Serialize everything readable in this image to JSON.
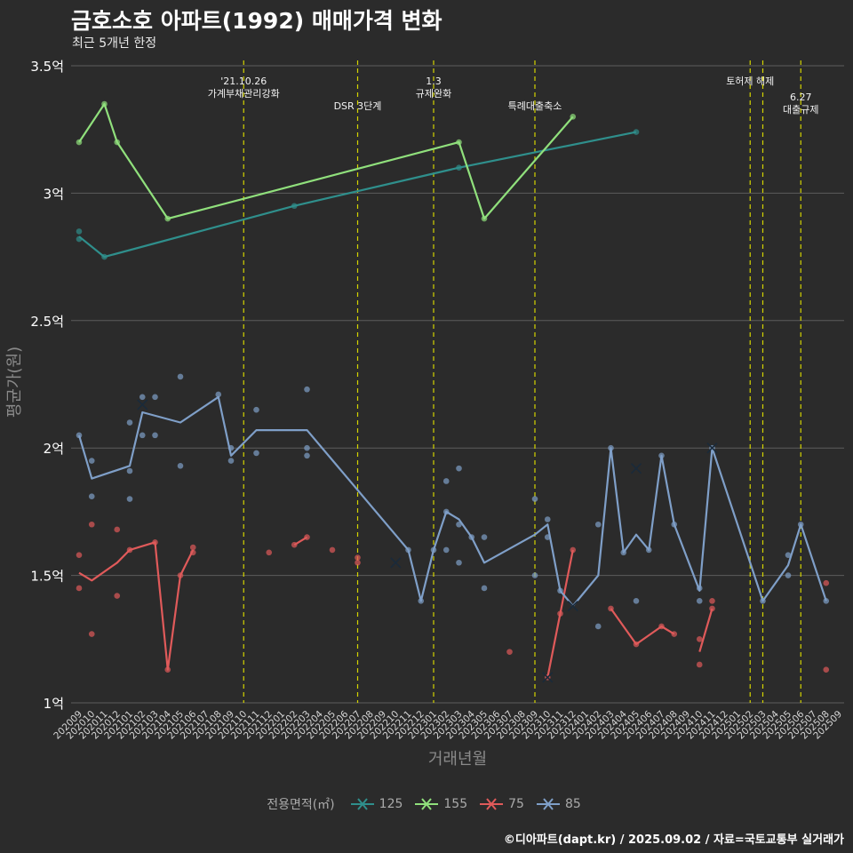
{
  "title": "금호소호 아파트(1992) 매매가격 변화",
  "subtitle": "최근 5개년 한정",
  "caption": "©디아파트(dapt.kr) / 2025.09.02 / 자료=국토교통부 실거래가",
  "legend": {
    "title": "전용면적(㎡)",
    "items": [
      {
        "label": "125",
        "color": "#2f8f8c"
      },
      {
        "label": "155",
        "color": "#90e07c"
      },
      {
        "label": "75",
        "color": "#e05a5a"
      },
      {
        "label": "85",
        "color": "#7f9fc8"
      }
    ]
  },
  "chart_data": {
    "type": "line",
    "xlabel": "거래년월",
    "ylabel": "평균가(원)",
    "ylim": [
      1.0,
      3.5
    ],
    "yticks": [
      {
        "value": 1.0,
        "label": "1억"
      },
      {
        "value": 1.5,
        "label": "1.5억"
      },
      {
        "value": 2.0,
        "label": "2억"
      },
      {
        "value": 2.5,
        "label": "2.5억"
      },
      {
        "value": 3.0,
        "label": "3억"
      },
      {
        "value": 3.5,
        "label": "3.5억"
      }
    ],
    "grid": true,
    "legend_position": "bottom",
    "categories": [
      "202009",
      "202010",
      "202011",
      "202012",
      "202101",
      "202102",
      "202103",
      "202104",
      "202105",
      "202106",
      "202107",
      "202108",
      "202109",
      "202110",
      "202111",
      "202112",
      "202201",
      "202202",
      "202203",
      "202204",
      "202205",
      "202206",
      "202207",
      "202208",
      "202209",
      "202210",
      "202211",
      "202212",
      "202301",
      "202302",
      "202303",
      "202304",
      "202305",
      "202306",
      "202307",
      "202308",
      "202309",
      "202310",
      "202311",
      "202312",
      "202401",
      "202402",
      "202403",
      "202404",
      "202405",
      "202406",
      "202407",
      "202408",
      "202409",
      "202410",
      "202411",
      "202412",
      "202501",
      "202502",
      "202503",
      "202504",
      "202505",
      "202506",
      "202507",
      "202508",
      "202509"
    ],
    "annotations": [
      {
        "x": 13,
        "lines": [
          "'21.10.26",
          "가계부채관리강화"
        ],
        "row": 1
      },
      {
        "x": 22,
        "lines": [
          "DSR 3단계"
        ],
        "row": 2
      },
      {
        "x": 28,
        "lines": [
          "1.3",
          "규제완화"
        ],
        "row": 1
      },
      {
        "x": 36,
        "lines": [
          "특례대출축소"
        ],
        "row": 2
      },
      {
        "x": 53,
        "lines": [
          "토허제 해제"
        ],
        "row": 1
      },
      {
        "x": 54,
        "lines": [],
        "row": 1
      },
      {
        "x": 57,
        "lines": [
          "6.27",
          "대출규제"
        ],
        "row": 3
      }
    ],
    "series": [
      {
        "name": "125",
        "color": "#2f8f8c",
        "line": [
          [
            0,
            2.83
          ],
          [
            2,
            2.75
          ],
          [
            17,
            2.95
          ],
          [
            30,
            3.1
          ],
          [
            44,
            3.24
          ]
        ],
        "points": [
          [
            0,
            2.85
          ],
          [
            0,
            2.82
          ],
          [
            2,
            2.75
          ],
          [
            17,
            2.95
          ],
          [
            30,
            3.1
          ],
          [
            44,
            3.24
          ]
        ],
        "crosses": []
      },
      {
        "name": "155",
        "color": "#90e07c",
        "line": [
          [
            0,
            3.2
          ],
          [
            2,
            3.35
          ],
          [
            3,
            3.2
          ],
          [
            7,
            2.9
          ],
          [
            30,
            3.2
          ],
          [
            32,
            2.9
          ],
          [
            39,
            3.3
          ]
        ],
        "points": [
          [
            0,
            3.2
          ],
          [
            2,
            3.35
          ],
          [
            3,
            3.2
          ],
          [
            7,
            2.9
          ],
          [
            30,
            3.2
          ],
          [
            32,
            2.9
          ],
          [
            39,
            3.3
          ]
        ],
        "crosses": []
      },
      {
        "name": "75",
        "color": "#e05a5a",
        "line": [
          [
            0,
            1.51
          ],
          [
            1,
            1.48
          ],
          [
            3,
            1.55
          ],
          [
            4,
            1.6
          ],
          [
            6,
            1.63
          ],
          [
            7,
            1.13
          ],
          [
            8,
            1.5
          ],
          [
            9,
            1.6
          ]
        ],
        "line2": [
          [
            17,
            1.62
          ],
          [
            18,
            1.65
          ]
        ],
        "line3": [
          [
            37,
            1.1
          ],
          [
            38,
            1.35
          ],
          [
            39,
            1.6
          ]
        ],
        "line4": [
          [
            42,
            1.37
          ],
          [
            44,
            1.23
          ],
          [
            46,
            1.3
          ],
          [
            47,
            1.27
          ]
        ],
        "line5": [
          [
            49,
            1.2
          ],
          [
            50,
            1.37
          ]
        ],
        "points": [
          [
            0,
            1.58
          ],
          [
            0,
            1.45
          ],
          [
            1,
            1.7
          ],
          [
            1,
            1.27
          ],
          [
            3,
            1.68
          ],
          [
            3,
            1.42
          ],
          [
            4,
            1.6
          ],
          [
            6,
            1.63
          ],
          [
            7,
            1.13
          ],
          [
            8,
            1.5
          ],
          [
            9,
            1.61
          ],
          [
            9,
            1.59
          ],
          [
            15,
            1.59
          ],
          [
            17,
            1.62
          ],
          [
            18,
            1.65
          ],
          [
            20,
            1.6
          ],
          [
            22,
            1.57
          ],
          [
            22,
            1.55
          ],
          [
            34,
            1.2
          ],
          [
            37,
            1.1
          ],
          [
            38,
            1.35
          ],
          [
            39,
            1.6
          ],
          [
            42,
            1.37
          ],
          [
            44,
            1.23
          ],
          [
            46,
            1.3
          ],
          [
            47,
            1.27
          ],
          [
            49,
            1.25
          ],
          [
            49,
            1.15
          ],
          [
            50,
            1.4
          ],
          [
            50,
            1.37
          ],
          [
            59,
            1.47
          ],
          [
            59,
            1.13
          ]
        ],
        "crosses": [
          [
            37,
            1.1
          ]
        ]
      },
      {
        "name": "85",
        "color": "#7f9fc8",
        "line": [
          [
            0,
            2.05
          ],
          [
            1,
            1.88
          ],
          [
            4,
            1.93
          ],
          [
            5,
            2.14
          ],
          [
            8,
            2.1
          ],
          [
            11,
            2.2
          ],
          [
            12,
            1.97
          ],
          [
            14,
            2.07
          ],
          [
            18,
            2.07
          ],
          [
            26,
            1.6
          ],
          [
            27,
            1.4
          ],
          [
            28,
            1.6
          ],
          [
            29,
            1.75
          ],
          [
            30,
            1.72
          ],
          [
            31,
            1.65
          ],
          [
            32,
            1.55
          ],
          [
            36,
            1.66
          ],
          [
            37,
            1.7
          ],
          [
            38,
            1.44
          ],
          [
            39,
            1.38
          ],
          [
            41,
            1.5
          ],
          [
            42,
            2.0
          ],
          [
            43,
            1.59
          ],
          [
            44,
            1.66
          ],
          [
            45,
            1.6
          ],
          [
            46,
            1.97
          ],
          [
            47,
            1.7
          ],
          [
            49,
            1.44
          ],
          [
            50,
            2.0
          ],
          [
            54,
            1.4
          ],
          [
            56,
            1.54
          ],
          [
            57,
            1.7
          ],
          [
            59,
            1.4
          ]
        ],
        "points": [
          [
            0,
            2.05
          ],
          [
            1,
            1.95
          ],
          [
            1,
            1.81
          ],
          [
            4,
            2.1
          ],
          [
            4,
            1.91
          ],
          [
            4,
            1.8
          ],
          [
            5,
            2.2
          ],
          [
            5,
            2.05
          ],
          [
            6,
            2.2
          ],
          [
            6,
            2.05
          ],
          [
            8,
            2.28
          ],
          [
            8,
            1.93
          ],
          [
            11,
            2.21
          ],
          [
            12,
            2.0
          ],
          [
            12,
            1.95
          ],
          [
            14,
            2.15
          ],
          [
            14,
            1.98
          ],
          [
            18,
            2.23
          ],
          [
            18,
            2.0
          ],
          [
            18,
            1.97
          ],
          [
            26,
            1.6
          ],
          [
            27,
            1.4
          ],
          [
            28,
            1.6
          ],
          [
            29,
            1.87
          ],
          [
            29,
            1.75
          ],
          [
            29,
            1.6
          ],
          [
            30,
            1.92
          ],
          [
            30,
            1.7
          ],
          [
            30,
            1.55
          ],
          [
            31,
            1.65
          ],
          [
            32,
            1.65
          ],
          [
            32,
            1.45
          ],
          [
            36,
            1.8
          ],
          [
            36,
            1.5
          ],
          [
            37,
            1.72
          ],
          [
            37,
            1.65
          ],
          [
            38,
            1.44
          ],
          [
            41,
            1.7
          ],
          [
            41,
            1.3
          ],
          [
            42,
            2.0
          ],
          [
            43,
            1.59
          ],
          [
            44,
            1.4
          ],
          [
            45,
            1.6
          ],
          [
            46,
            1.97
          ],
          [
            47,
            1.7
          ],
          [
            49,
            1.45
          ],
          [
            49,
            1.4
          ],
          [
            50,
            2.0
          ],
          [
            54,
            1.4
          ],
          [
            56,
            1.58
          ],
          [
            56,
            1.5
          ],
          [
            57,
            1.7
          ],
          [
            59,
            1.4
          ]
        ],
        "crosses": [
          [
            5,
            2.17
          ],
          [
            25,
            1.55
          ],
          [
            44,
            1.92
          ],
          [
            50,
            2.0
          ],
          [
            39,
            1.38
          ]
        ]
      }
    ]
  }
}
